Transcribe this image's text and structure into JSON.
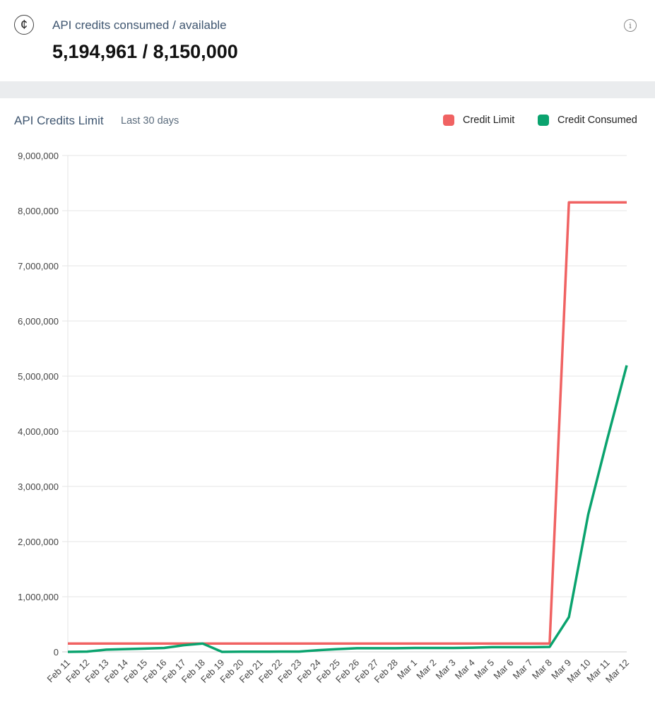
{
  "header": {
    "label": "API credits consumed / available",
    "value": "5,194,961 / 8,150,000",
    "coin_icon": "¢",
    "info_icon": "i"
  },
  "chart_data": {
    "type": "line",
    "title": "API Credits Limit",
    "subtitle": "Last 30 days",
    "ylim": [
      0,
      9000000
    ],
    "yticks": [
      "0",
      "1,000,000",
      "2,000,000",
      "3,000,000",
      "4,000,000",
      "5,000,000",
      "6,000,000",
      "7,000,000",
      "8,000,000",
      "9,000,000"
    ],
    "categories": [
      "Feb 11",
      "Feb 12",
      "Feb 13",
      "Feb 14",
      "Feb 15",
      "Feb 16",
      "Feb 17",
      "Feb 18",
      "Feb 19",
      "Feb 20",
      "Feb 21",
      "Feb 22",
      "Feb 23",
      "Feb 24",
      "Feb 25",
      "Feb 26",
      "Feb 27",
      "Feb 28",
      "Mar 1",
      "Mar 2",
      "Mar 3",
      "Mar 4",
      "Mar 5",
      "Mar 6",
      "Mar 7",
      "Mar 8",
      "Mar 9",
      "Mar 10",
      "Mar 11",
      "Mar 12"
    ],
    "series": [
      {
        "name": "Credit Limit",
        "color": "#f06262",
        "values": [
          150000,
          150000,
          150000,
          150000,
          150000,
          150000,
          150000,
          150000,
          150000,
          150000,
          150000,
          150000,
          150000,
          150000,
          150000,
          150000,
          150000,
          150000,
          150000,
          150000,
          150000,
          150000,
          150000,
          150000,
          150000,
          150000,
          8150000,
          8150000,
          8150000,
          8150000
        ]
      },
      {
        "name": "Credit Consumed",
        "color": "#0aa36e",
        "values": [
          0,
          5000,
          40000,
          50000,
          60000,
          70000,
          120000,
          150000,
          0,
          3000,
          3000,
          5000,
          5000,
          30000,
          50000,
          65000,
          65000,
          65000,
          70000,
          70000,
          70000,
          75000,
          85000,
          85000,
          85000,
          90000,
          630000,
          2490000,
          3870000,
          5194961
        ]
      }
    ],
    "legend": "top-right"
  }
}
